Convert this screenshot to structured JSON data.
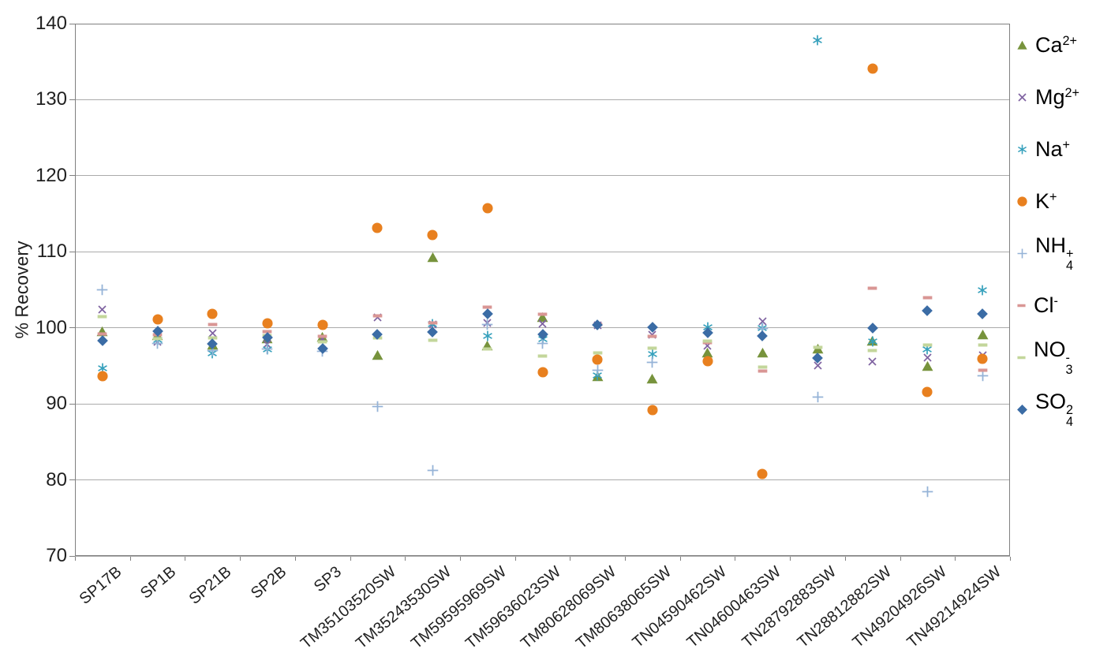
{
  "chart_data": {
    "type": "scatter",
    "title": "",
    "xlabel": "",
    "ylabel": "% Recovery",
    "ylim": [
      70,
      140
    ],
    "yticks": [
      140,
      130,
      120,
      110,
      100,
      90,
      80,
      70
    ],
    "grid": "horizontal-only",
    "legend_position": "right",
    "categories": [
      "SP17B",
      "SP1B",
      "SP21B",
      "SP2B",
      "SP3",
      "TM35103520SW",
      "TM35243530SW",
      "TM59595969SW",
      "TM59636023SW",
      "TM80628069SW",
      "TM80638065SW",
      "TN04590462SW",
      "TN04600463SW",
      "TN28792883SW",
      "TN28812882SW",
      "TN49204926SW",
      "TN49214924SW"
    ],
    "series": [
      {
        "id": "ca",
        "name": "Ca2+",
        "label_base": "Ca",
        "label_sup": "2+",
        "label_sub": "",
        "marker": "triangle",
        "color": "#77933C",
        "values": [
          99.5,
          99.0,
          97.7,
          98.6,
          98.8,
          96.4,
          109.3,
          97.6,
          101.4,
          93.6,
          93.3,
          96.7,
          96.7,
          97.2,
          98.3,
          94.9,
          99.1
        ]
      },
      {
        "id": "mg",
        "name": "Mg2+",
        "label_base": "Mg",
        "label_sup": "2+",
        "label_sub": "",
        "marker": "x",
        "color": "#8064A2",
        "values": [
          102.4,
          98.2,
          99.3,
          97.8,
          98.6,
          101.4,
          100.4,
          100.6,
          100.5,
          100.3,
          99.1,
          97.6,
          100.9,
          95.0,
          95.6,
          96.1,
          96.4
        ]
      },
      {
        "id": "na",
        "name": "Na+",
        "label_base": "Na",
        "label_sup": "+",
        "label_sub": "",
        "marker": "asterisk",
        "color": "#35A0BC",
        "values": [
          94.7,
          98.4,
          96.7,
          97.2,
          null,
          null,
          100.5,
          98.9,
          98.5,
          93.8,
          96.6,
          100.1,
          100.0,
          137.8,
          98.2,
          97.2,
          104.9
        ]
      },
      {
        "id": "k",
        "name": "K+",
        "label_base": "K",
        "label_sup": "+",
        "label_sub": "",
        "marker": "circle",
        "color": "#E8801F",
        "values": [
          93.6,
          101.1,
          101.8,
          100.6,
          100.4,
          113.1,
          112.2,
          115.7,
          94.2,
          95.8,
          89.2,
          95.6,
          80.8,
          null,
          134.1,
          91.6,
          95.9
        ]
      },
      {
        "id": "nh4",
        "name": "NH4+",
        "label_base": "NH",
        "label_sup": "+",
        "label_sub": "4",
        "marker": "plus",
        "color": "#95B3D7",
        "values": [
          105.0,
          97.9,
          97.0,
          97.2,
          96.9,
          89.7,
          81.3,
          100.4,
          97.9,
          94.4,
          95.5,
          null,
          99.9,
          90.9,
          null,
          78.5,
          93.7
        ]
      },
      {
        "id": "cl",
        "name": "Cl-",
        "label_base": "Cl",
        "label_sup": "-",
        "label_sub": "",
        "marker": "dash",
        "color": "#D99694",
        "values": [
          99.2,
          99.1,
          100.4,
          99.5,
          98.9,
          101.6,
          100.6,
          102.7,
          101.8,
          100.4,
          98.9,
          98.1,
          94.3,
          null,
          105.2,
          104.0,
          94.4
        ]
      },
      {
        "id": "no3",
        "name": "NO3-",
        "label_base": "NO",
        "label_sup": "-",
        "label_sub": "3",
        "marker": "dash",
        "color": "#C3D69B",
        "values": [
          101.5,
          98.6,
          98.7,
          99.0,
          98.2,
          98.7,
          98.4,
          97.2,
          96.3,
          96.7,
          97.3,
          98.3,
          94.8,
          97.4,
          97.0,
          97.7,
          97.7
        ]
      },
      {
        "id": "so4",
        "name": "SO42-",
        "label_base": "SO",
        "label_sup": "2",
        "label_sub": "4",
        "marker": "diamond",
        "color": "#3B6CA5",
        "values": [
          98.3,
          99.6,
          97.9,
          98.7,
          97.3,
          99.1,
          99.5,
          101.8,
          99.1,
          100.4,
          100.1,
          99.3,
          98.9,
          96.0,
          100.0,
          102.3,
          101.8
        ]
      }
    ]
  }
}
